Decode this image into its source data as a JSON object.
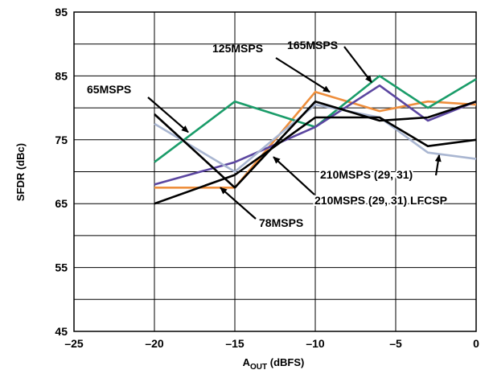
{
  "chart_data": {
    "type": "line",
    "xlabel_main": "A",
    "xlabel_sub": "OUT",
    "xlabel_unit": " (dBFS)",
    "ylabel": "SFDR (dBc)",
    "xlim": [
      -25,
      0
    ],
    "ylim": [
      45,
      95
    ],
    "xticks": [
      -25,
      -20,
      -15,
      -10,
      -5,
      0
    ],
    "xtick_labels": [
      "–25",
      "–20",
      "–15",
      "–10",
      "–5",
      "0"
    ],
    "yticks": [
      45,
      55,
      65,
      75,
      85,
      95
    ],
    "ytick_labels": [
      "45",
      "55",
      "65",
      "75",
      "85",
      "95"
    ],
    "grid_y_step": 5,
    "grid": true,
    "legend": "none (series labeled by annotations)",
    "series": [
      {
        "key": "s125",
        "color": "#ee8e3c",
        "x": [
          -20,
          -15,
          -10,
          -6,
          -3,
          0
        ],
        "y": [
          67.5,
          67.5,
          82.5,
          79.5,
          81.0,
          80.5
        ]
      },
      {
        "key": "s165",
        "color": "#1a9c69",
        "x": [
          -20,
          -15,
          -10,
          -6,
          -3,
          0
        ],
        "y": [
          71.5,
          81.0,
          77.0,
          85.0,
          80.0,
          84.5
        ]
      },
      {
        "key": "s78",
        "color": "#5b46a0",
        "x": [
          -20,
          -15,
          -10,
          -6,
          -3,
          0
        ],
        "y": [
          68.0,
          71.5,
          77.0,
          83.5,
          78.0,
          81.0
        ]
      },
      {
        "key": "s210",
        "color": "#a9b6d1",
        "x": [
          -20,
          -15,
          -10,
          -6,
          -3,
          0
        ],
        "y": [
          77.5,
          70.0,
          80.5,
          78.5,
          73.0,
          72.0
        ]
      },
      {
        "key": "s65",
        "color": "#000000",
        "x": [
          -20,
          -15,
          -10,
          -6,
          -3,
          0
        ],
        "y": [
          79.0,
          67.5,
          81.0,
          78.0,
          78.5,
          81.0
        ]
      },
      {
        "key": "s210lfcsp",
        "color": "#000000",
        "x": [
          -20,
          -15,
          -10,
          -6,
          -3,
          0
        ],
        "y": [
          65.0,
          69.5,
          78.5,
          78.5,
          74.0,
          75.0
        ]
      }
    ],
    "annotations": [
      {
        "key": "a65",
        "text": "65MSPS",
        "arrow_to": [
          -17.9,
          76.2
        ]
      },
      {
        "key": "a125",
        "text": "125MSPS",
        "arrow_to": [
          -9.1,
          82.5
        ]
      },
      {
        "key": "a165",
        "text": "165MSPS",
        "arrow_to": [
          -6.5,
          84.0
        ]
      },
      {
        "key": "a78",
        "text": "78MSPS",
        "arrow_to": [
          -15.9,
          67.5
        ]
      },
      {
        "key": "a210",
        "text": "210MSPS (29, 31)",
        "arrow_to": [
          -2.3,
          72.6
        ]
      },
      {
        "key": "a210l",
        "text": "210MSPS (29, 31) LFCSP",
        "arrow_to": [
          -12.6,
          72.3
        ]
      }
    ]
  }
}
